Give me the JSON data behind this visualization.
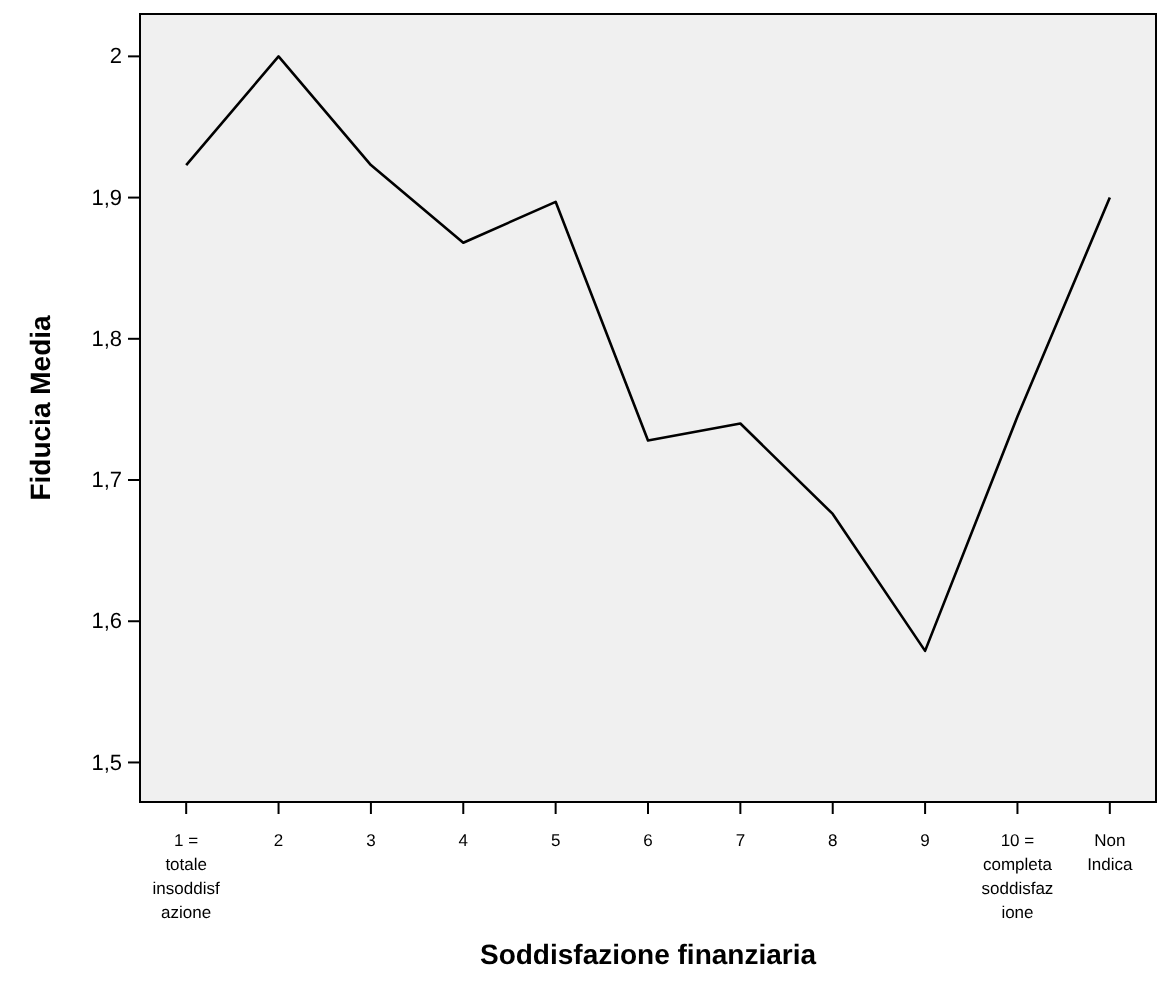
{
  "chart_data": {
    "type": "line",
    "xlabel": "Soddisfazione finanziaria",
    "ylabel": "Fiducia Media",
    "categories": [
      "1 = totale insoddisfazione",
      "2",
      "3",
      "4",
      "5",
      "6",
      "7",
      "8",
      "9",
      "10 = completa soddisfazione",
      "Non Indica"
    ],
    "series": [
      {
        "color": "#000000",
        "values": [
          1.923,
          2.0,
          1.923,
          1.868,
          1.897,
          1.728,
          1.74,
          1.676,
          1.579,
          1.745,
          1.9
        ]
      }
    ],
    "ylim": [
      1.472,
      2.03
    ],
    "yticks": [
      {
        "value": 1.5,
        "label": "1,5"
      },
      {
        "value": 1.6,
        "label": "1,6"
      },
      {
        "value": 1.7,
        "label": "1,7"
      },
      {
        "value": 1.8,
        "label": "1,8"
      },
      {
        "value": 1.9,
        "label": "1,9"
      },
      {
        "value": 2,
        "label": "2"
      }
    ],
    "marker": "none",
    "line_style": "solid"
  }
}
